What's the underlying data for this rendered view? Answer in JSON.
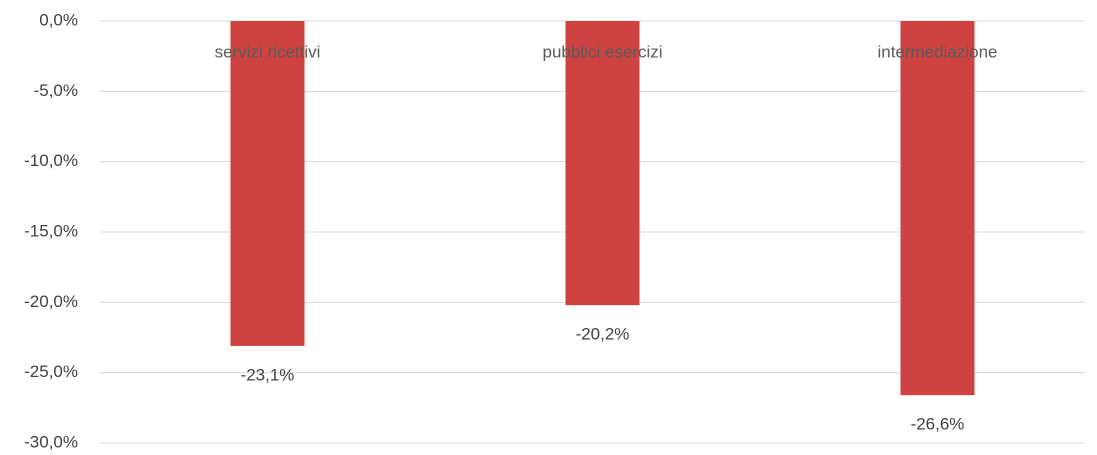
{
  "chart_data": {
    "type": "bar",
    "categories": [
      "servizi ricettivi",
      "pubblici esercizi",
      "intermediazione"
    ],
    "values": [
      -23.1,
      -20.2,
      -26.6
    ],
    "value_labels": [
      "-23,1%",
      "-20,2%",
      "-26,6%"
    ],
    "color": "#cf4242",
    "ylim": [
      -30,
      0
    ],
    "yticks": [
      {
        "value": 0,
        "label": "0,0%"
      },
      {
        "value": -5,
        "label": "-5,0%"
      },
      {
        "value": -10,
        "label": "-10,0%"
      },
      {
        "value": -15,
        "label": "-15,0%"
      },
      {
        "value": -20,
        "label": "-20,0%"
      },
      {
        "value": -25,
        "label": "-25,0%"
      },
      {
        "value": -30,
        "label": "-30,0%"
      }
    ],
    "grid": true
  }
}
